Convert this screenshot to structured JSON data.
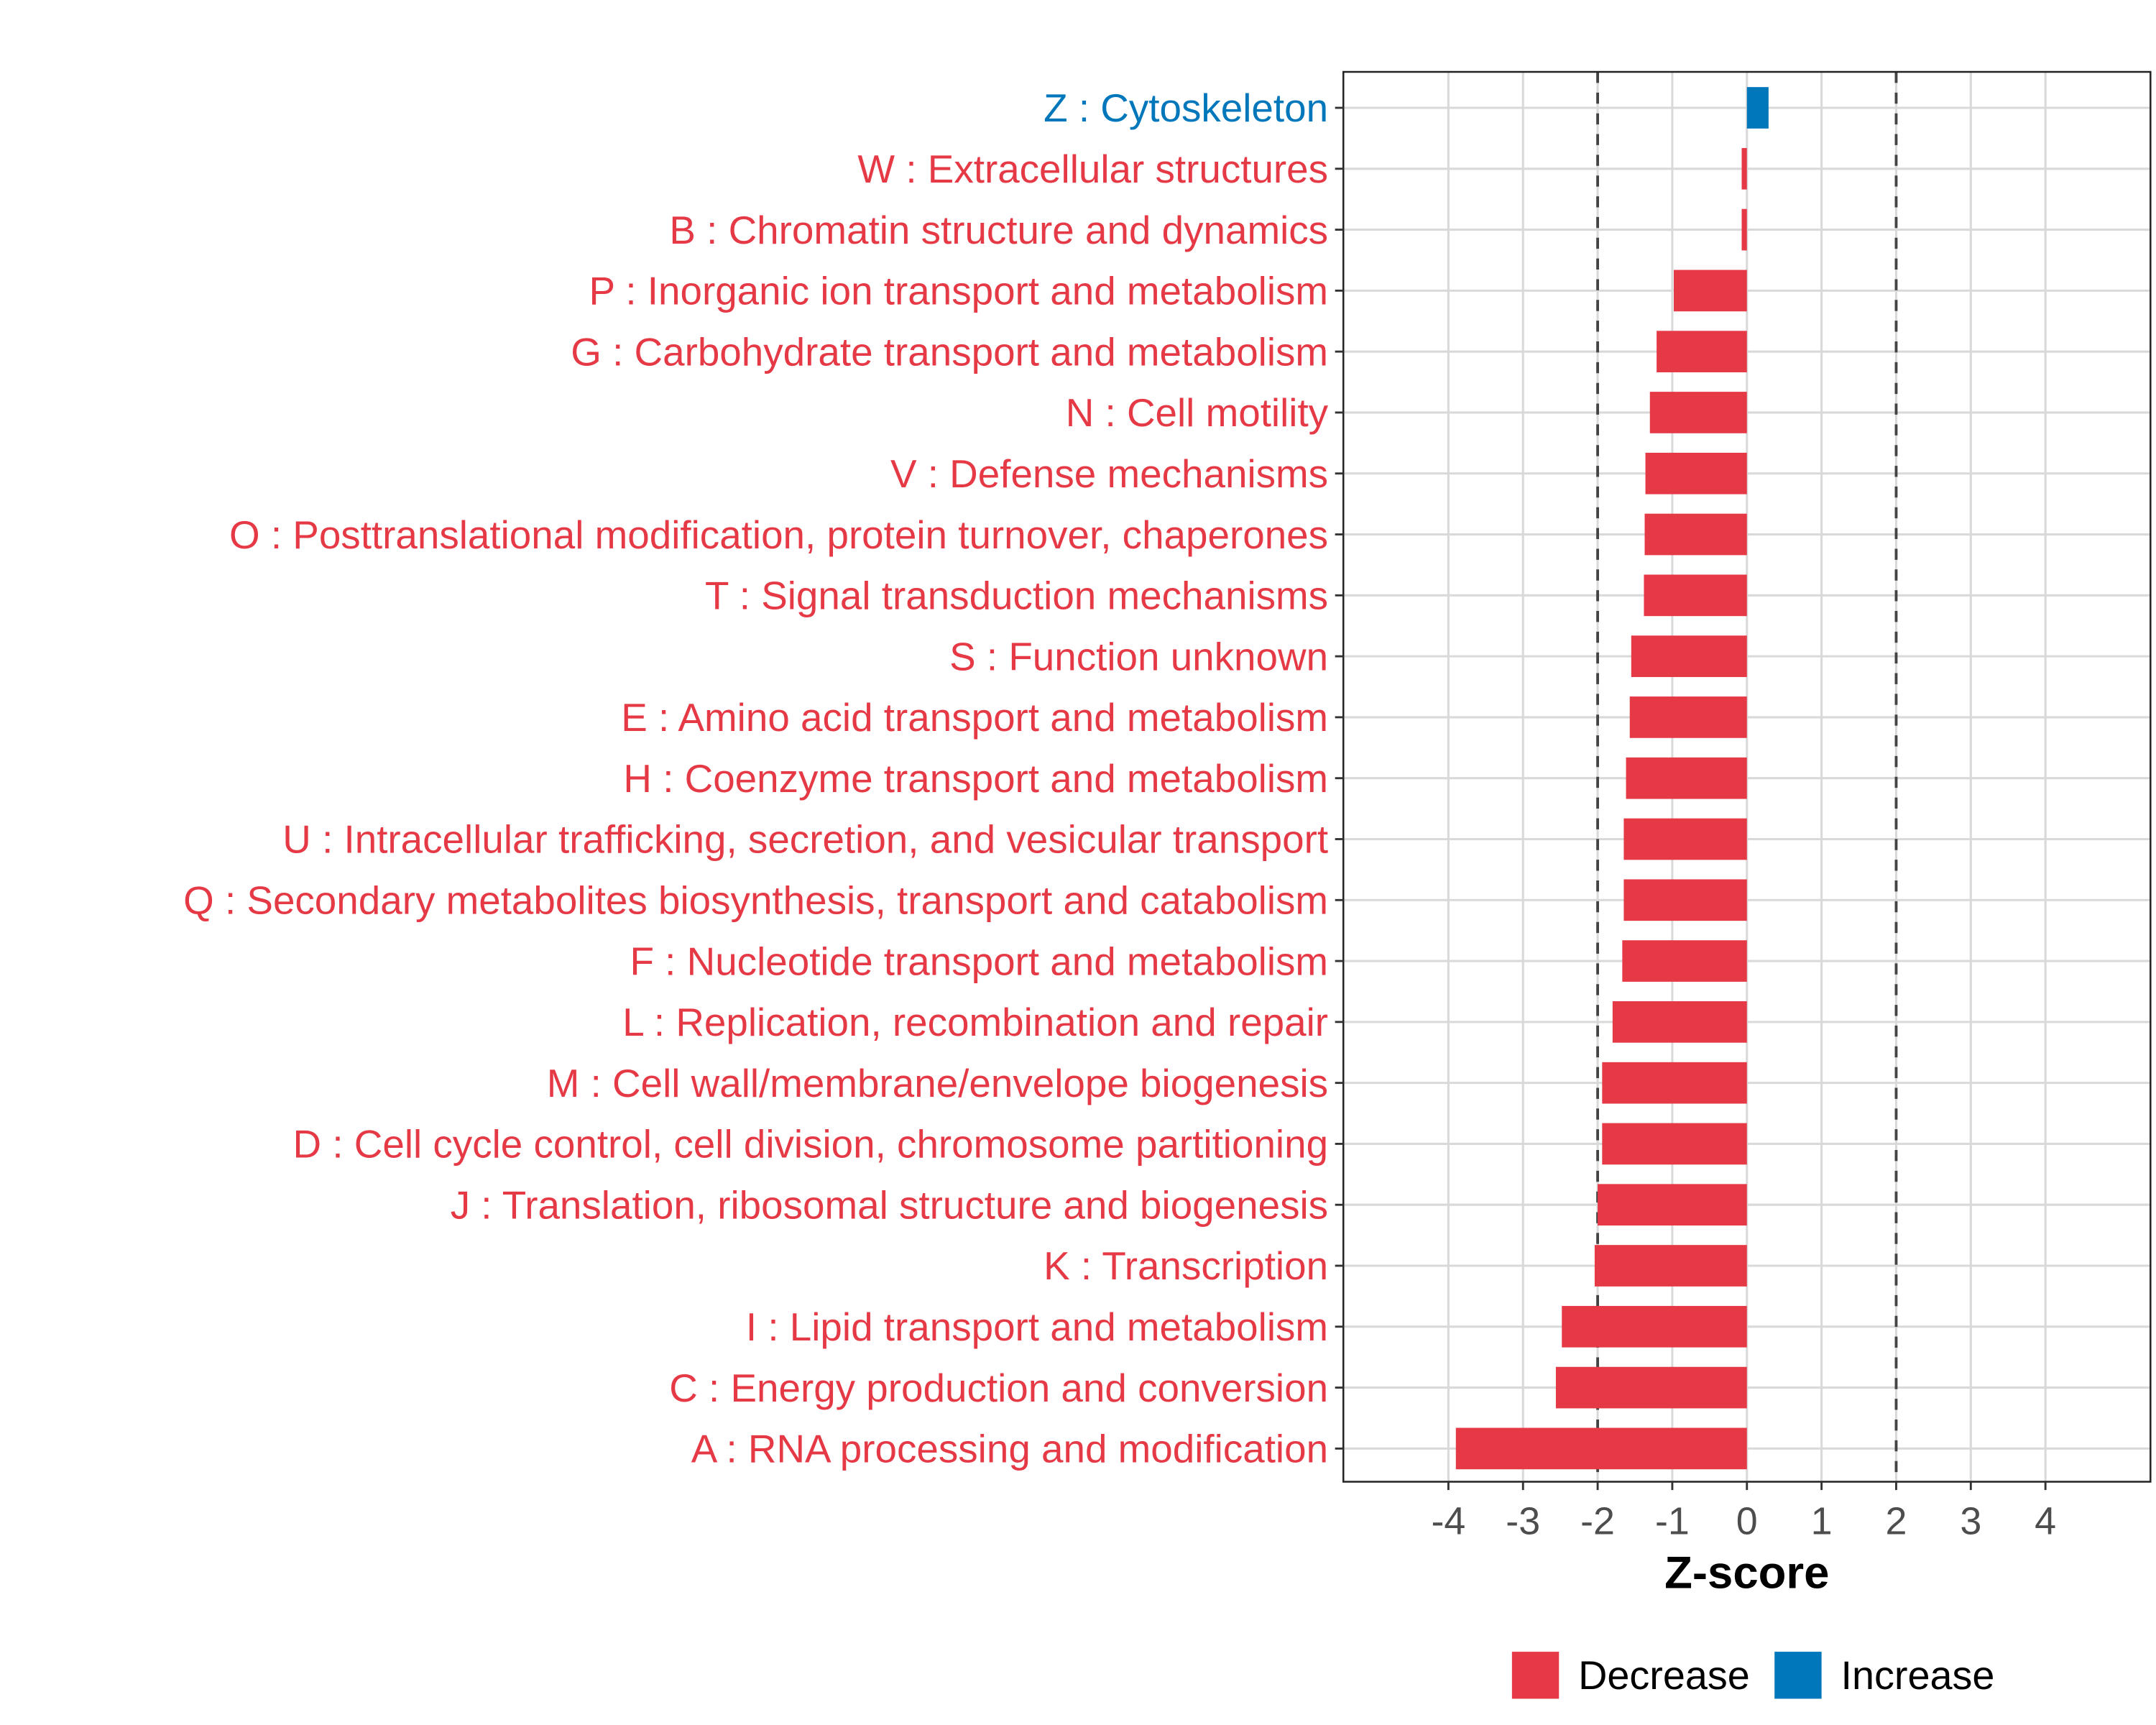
{
  "chart_data": {
    "type": "bar",
    "orientation": "horizontal",
    "title": "",
    "xlabel": "Z-score",
    "ylabel": "",
    "xlim": [
      -5.4,
      5.4
    ],
    "xticks": [
      -4,
      -3,
      -2,
      -1,
      0,
      1,
      2,
      3,
      4
    ],
    "xtick_labels": [
      "-4",
      "-3",
      "-2",
      "-1",
      "0",
      "1",
      "2",
      "3",
      "4"
    ],
    "reference_lines": [
      -2,
      2
    ],
    "grid": true,
    "legend_position": "bottom",
    "legend": [
      {
        "label": "Decrease",
        "color": "#E63946"
      },
      {
        "label": "Increase",
        "color": "#0077BB"
      }
    ],
    "categories": [
      "Z : Cytoskeleton",
      "W : Extracellular structures",
      "B : Chromatin structure and dynamics",
      "P : Inorganic ion transport and metabolism",
      "G : Carbohydrate transport and metabolism",
      "N : Cell motility",
      "V : Defense mechanisms",
      "O : Posttranslational modification, protein turnover, chaperones",
      "T : Signal transduction mechanisms",
      "S : Function unknown",
      "E : Amino acid transport and metabolism",
      "H : Coenzyme transport and metabolism",
      "U : Intracellular trafficking, secretion, and vesicular transport",
      "Q : Secondary metabolites biosynthesis, transport and catabolism",
      "F : Nucleotide transport and metabolism",
      "L : Replication, recombination and repair",
      "M : Cell wall/membrane/envelope biogenesis",
      "D : Cell cycle control, cell division, chromosome partitioning",
      "J : Translation, ribosomal structure and biogenesis",
      "K : Transcription",
      "I : Lipid transport and metabolism",
      "C : Energy production and conversion",
      "A : RNA processing and modification"
    ],
    "values": [
      0.29,
      -0.07,
      -0.07,
      -0.98,
      -1.21,
      -1.3,
      -1.36,
      -1.37,
      -1.38,
      -1.55,
      -1.57,
      -1.62,
      -1.65,
      -1.65,
      -1.67,
      -1.8,
      -1.94,
      -1.94,
      -2.0,
      -2.04,
      -2.48,
      -2.56,
      -3.9
    ],
    "groups": [
      "Increase",
      "Decrease",
      "Decrease",
      "Decrease",
      "Decrease",
      "Decrease",
      "Decrease",
      "Decrease",
      "Decrease",
      "Decrease",
      "Decrease",
      "Decrease",
      "Decrease",
      "Decrease",
      "Decrease",
      "Decrease",
      "Decrease",
      "Decrease",
      "Decrease",
      "Decrease",
      "Decrease",
      "Decrease",
      "Decrease"
    ]
  }
}
